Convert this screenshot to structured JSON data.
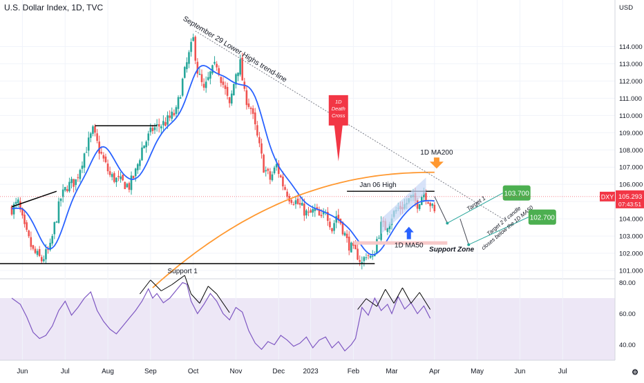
{
  "header": {
    "title": "U.S. Dollar Index, 1D, TVC"
  },
  "chart_data": [
    {
      "type": "candlestick",
      "currency_label": "USD",
      "y_ticks": [
        101,
        102,
        103,
        104,
        105,
        106,
        107,
        108,
        109,
        110,
        111,
        112,
        113,
        114
      ],
      "y_tick_labels": [
        "101.000",
        "102.000",
        "103.000",
        "104.000",
        "105.000",
        "106.000",
        "107.000",
        "108.000",
        "109.000",
        "110.000",
        "111.000",
        "112.000",
        "113.000",
        "114.000"
      ],
      "ylim": [
        100.6,
        115.3
      ],
      "x_months": [
        {
          "label": "Jun",
          "m": 0.25
        },
        {
          "label": "Jul",
          "m": 1.25
        },
        {
          "label": "Aug",
          "m": 2.25
        },
        {
          "label": "Sep",
          "m": 3.25
        },
        {
          "label": "Oct",
          "m": 4.25
        },
        {
          "label": "Nov",
          "m": 5.25
        },
        {
          "label": "Dec",
          "m": 6.25
        },
        {
          "label": "2023",
          "m": 7
        },
        {
          "label": "Feb",
          "m": 8.0
        },
        {
          "label": "Mar",
          "m": 8.9
        },
        {
          "label": "Apr",
          "m": 9.9
        },
        {
          "label": "May",
          "m": 10.9
        },
        {
          "label": "Jun",
          "m": 11.9
        },
        {
          "label": "Jul",
          "m": 12.9
        }
      ],
      "close_path": [
        [
          0,
          104.6
        ],
        [
          0.15,
          104.9
        ],
        [
          0.3,
          103.4
        ],
        [
          0.5,
          102.1
        ],
        [
          0.7,
          101.6
        ],
        [
          0.9,
          102.3
        ],
        [
          1.0,
          103.6
        ],
        [
          1.15,
          105.2
        ],
        [
          1.3,
          105.9
        ],
        [
          1.5,
          106.2
        ],
        [
          1.7,
          107.8
        ],
        [
          1.9,
          109.1
        ],
        [
          2.05,
          108.0
        ],
        [
          2.3,
          106.5
        ],
        [
          2.5,
          106.2
        ],
        [
          2.75,
          105.9
        ],
        [
          2.9,
          106.7
        ],
        [
          3.05,
          108.1
        ],
        [
          3.3,
          109.2
        ],
        [
          3.6,
          109.6
        ],
        [
          3.85,
          110.2
        ],
        [
          4.0,
          112.0
        ],
        [
          4.15,
          113.5
        ],
        [
          4.25,
          114.4
        ],
        [
          4.35,
          112.6
        ],
        [
          4.5,
          111.4
        ],
        [
          4.65,
          112.4
        ],
        [
          4.8,
          113.0
        ],
        [
          4.9,
          112.2
        ],
        [
          5.0,
          111.4
        ],
        [
          5.1,
          110.5
        ],
        [
          5.25,
          112.5
        ],
        [
          5.35,
          113.0
        ],
        [
          5.45,
          111.2
        ],
        [
          5.6,
          110.4
        ],
        [
          5.75,
          108.7
        ],
        [
          5.9,
          107.0
        ],
        [
          6.05,
          106.3
        ],
        [
          6.2,
          107.1
        ],
        [
          6.35,
          106.0
        ],
        [
          6.5,
          105.3
        ],
        [
          6.65,
          105.0
        ],
        [
          6.8,
          104.6
        ],
        [
          6.95,
          104.2
        ],
        [
          7.1,
          104.5
        ],
        [
          7.25,
          103.9
        ],
        [
          7.35,
          104.6
        ],
        [
          7.5,
          103.4
        ],
        [
          7.6,
          104.2
        ],
        [
          7.7,
          103.8
        ],
        [
          7.85,
          102.7
        ],
        [
          8.0,
          102.1
        ],
        [
          8.1,
          101.9
        ],
        [
          8.2,
          101.4
        ],
        [
          8.3,
          102.0
        ],
        [
          8.45,
          101.6
        ],
        [
          8.55,
          102.8
        ],
        [
          8.65,
          103.6
        ],
        [
          8.75,
          103.5
        ],
        [
          8.9,
          104.2
        ],
        [
          9.05,
          104.6
        ],
        [
          9.2,
          104.8
        ],
        [
          9.35,
          105.2
        ],
        [
          9.5,
          104.9
        ],
        [
          9.65,
          105.6
        ],
        [
          9.8,
          104.9
        ],
        [
          9.9,
          104.3
        ]
      ],
      "annotations": [
        {
          "label": "September 29 Lower Highs trend-line"
        },
        {
          "label": "1D Death Cross",
          "lines": [
            "1D",
            "Death",
            "Cross"
          ]
        },
        {
          "label": "1D MA200"
        },
        {
          "label": "Jan 06 High"
        },
        {
          "label": "Target 1"
        },
        {
          "label": "Target 2 if candle closes below the 1D MA50",
          "lines": [
            "Target 2 if candle",
            "closes below the 1D MA50"
          ]
        },
        {
          "label": "1D MA50"
        },
        {
          "label": "Support Zone"
        },
        {
          "label": "Support 1"
        }
      ],
      "targets": [
        {
          "label": "103.700",
          "value": 103.7,
          "color": "#4caf50"
        },
        {
          "label": "102.700",
          "value": 102.7,
          "color": "#4caf50"
        }
      ],
      "last_price": {
        "symbol": "DXY",
        "value": "105.293",
        "countdown": "07:43:51",
        "color": "#f23645"
      },
      "colors": {
        "up": "#26a69a",
        "down": "#ef5350",
        "ma50": "#2962ff",
        "ma200": "#ff9830",
        "callout": "#f23645",
        "arrow_blue": "#2962ff",
        "channel": "#c7d7f7",
        "support_zone": "#f7c9c9"
      }
    },
    {
      "type": "line",
      "name": "RSI",
      "y_ticks": [
        40,
        60,
        80
      ],
      "y_tick_labels": [
        "40.00",
        "60.00",
        "80.00"
      ],
      "ylim": [
        30,
        82
      ],
      "band": [
        30,
        70
      ],
      "color": "#7e57c2",
      "series": [
        [
          0,
          70
        ],
        [
          0.2,
          66
        ],
        [
          0.35,
          58
        ],
        [
          0.5,
          48
        ],
        [
          0.65,
          44
        ],
        [
          0.8,
          46
        ],
        [
          0.95,
          52
        ],
        [
          1.1,
          62
        ],
        [
          1.25,
          68
        ],
        [
          1.4,
          59
        ],
        [
          1.55,
          64
        ],
        [
          1.7,
          70
        ],
        [
          1.85,
          74
        ],
        [
          2.0,
          62
        ],
        [
          2.15,
          55
        ],
        [
          2.3,
          50
        ],
        [
          2.45,
          47
        ],
        [
          2.6,
          52
        ],
        [
          2.75,
          57
        ],
        [
          2.9,
          62
        ],
        [
          3.05,
          68
        ],
        [
          3.2,
          76
        ],
        [
          3.3,
          70
        ],
        [
          3.4,
          73
        ],
        [
          3.55,
          67
        ],
        [
          3.7,
          70
        ],
        [
          3.85,
          75
        ],
        [
          4.0,
          80
        ],
        [
          4.1,
          79
        ],
        [
          4.2,
          68
        ],
        [
          4.35,
          60
        ],
        [
          4.5,
          66
        ],
        [
          4.65,
          73
        ],
        [
          4.8,
          68
        ],
        [
          4.95,
          60
        ],
        [
          5.1,
          56
        ],
        [
          5.25,
          64
        ],
        [
          5.4,
          61
        ],
        [
          5.55,
          49
        ],
        [
          5.7,
          41
        ],
        [
          5.85,
          37
        ],
        [
          6.0,
          42
        ],
        [
          6.15,
          40
        ],
        [
          6.3,
          46
        ],
        [
          6.45,
          43
        ],
        [
          6.6,
          39
        ],
        [
          6.75,
          41
        ],
        [
          6.9,
          45
        ],
        [
          7.05,
          38
        ],
        [
          7.2,
          43
        ],
        [
          7.35,
          45
        ],
        [
          7.5,
          38
        ],
        [
          7.65,
          42
        ],
        [
          7.8,
          36
        ],
        [
          7.95,
          40
        ],
        [
          8.05,
          44
        ],
        [
          8.2,
          64
        ],
        [
          8.35,
          59
        ],
        [
          8.5,
          70
        ],
        [
          8.65,
          62
        ],
        [
          8.8,
          66
        ],
        [
          8.9,
          60
        ],
        [
          9.05,
          71
        ],
        [
          9.2,
          63
        ],
        [
          9.35,
          67
        ],
        [
          9.5,
          60
        ],
        [
          9.65,
          65
        ],
        [
          9.8,
          57
        ]
      ]
    }
  ]
}
